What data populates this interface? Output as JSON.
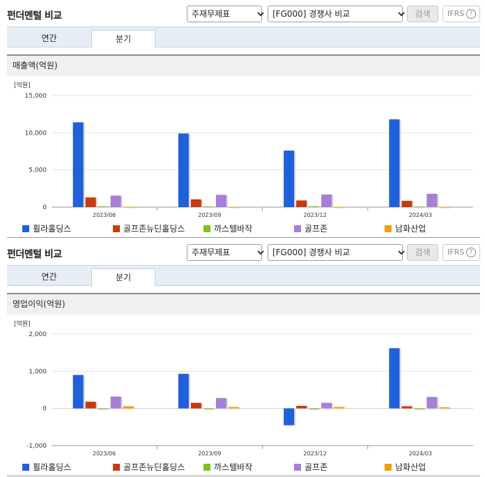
{
  "panels": [
    {
      "title": "펀더멘털 비교",
      "select1": "주재무제표",
      "select2": "[FG000] 경쟁사 비교",
      "search_label": "검색",
      "ifrs_label": "IFRS",
      "ifrs_help": "?",
      "tabs": [
        "연간",
        "분기"
      ],
      "active_tab": 1,
      "metric_title": "매출액(억원)"
    },
    {
      "title": "펀더멘털 비교",
      "select1": "주재무제표",
      "select2": "[FG000] 경쟁사 비교",
      "search_label": "검색",
      "ifrs_label": "IFRS",
      "ifrs_help": "?",
      "tabs": [
        "연간",
        "분기"
      ],
      "active_tab": 1,
      "metric_title": "영업이익(억원)"
    }
  ],
  "legend": [
    {
      "label": "휠라홀딩스",
      "color": "#2060d8"
    },
    {
      "label": "골프존뉴딘홀딩스",
      "color": "#c83a10"
    },
    {
      "label": "까스텔바작",
      "color": "#7fbf1f"
    },
    {
      "label": "골프존",
      "color": "#a77fd8"
    },
    {
      "label": "남화산업",
      "color": "#f0a010"
    }
  ],
  "chart_data": [
    {
      "type": "bar",
      "unit_label": "[억원]",
      "categories": [
        "2023/06",
        "2023/09",
        "2023/12",
        "2024/03"
      ],
      "ylim": [
        0,
        15000
      ],
      "yticks": [
        0,
        5000,
        10000,
        15000
      ],
      "ytick_labels": [
        "0",
        "5,000",
        "10,000",
        "15,000"
      ],
      "series": [
        {
          "name": "휠라홀딩스",
          "values": [
            11400,
            9900,
            7600,
            11800
          ]
        },
        {
          "name": "골프존뉴딘홀딩스",
          "values": [
            1300,
            1050,
            900,
            850
          ]
        },
        {
          "name": "까스텔바작",
          "values": [
            100,
            90,
            120,
            80
          ]
        },
        {
          "name": "골프존",
          "values": [
            1550,
            1650,
            1700,
            1800
          ]
        },
        {
          "name": "남화산업",
          "values": [
            40,
            30,
            30,
            30
          ]
        }
      ]
    },
    {
      "type": "bar",
      "unit_label": "[억원]",
      "categories": [
        "2023/06",
        "2023/09",
        "2023/12",
        "2024/03"
      ],
      "ylim": [
        -1000,
        2000
      ],
      "yticks": [
        -1000,
        0,
        1000,
        2000
      ],
      "ytick_labels": [
        "-1,000",
        "0",
        "1,000",
        "2,000"
      ],
      "series": [
        {
          "name": "휠라홀딩스",
          "values": [
            900,
            930,
            -450,
            1620
          ]
        },
        {
          "name": "골프존뉴딘홀딩스",
          "values": [
            180,
            150,
            70,
            60
          ]
        },
        {
          "name": "까스텔바작",
          "values": [
            -10,
            -5,
            -20,
            -5
          ]
        },
        {
          "name": "골프존",
          "values": [
            320,
            280,
            150,
            310
          ]
        },
        {
          "name": "남화산업",
          "values": [
            60,
            40,
            40,
            30
          ]
        }
      ]
    }
  ]
}
